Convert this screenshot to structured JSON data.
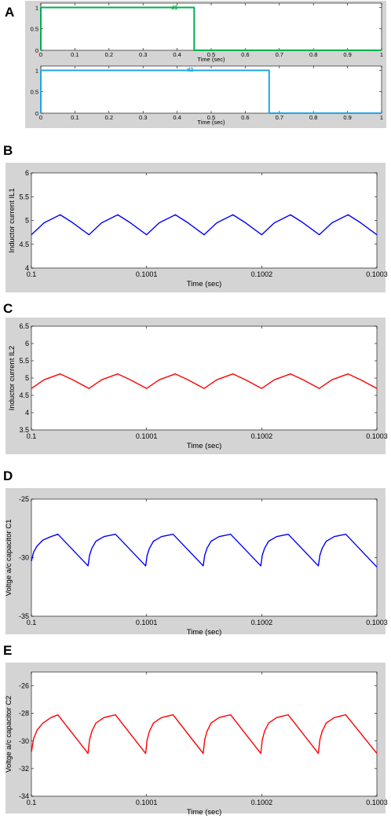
{
  "chart_data": [
    {
      "panel": "A",
      "type": "line",
      "subplots": [
        {
          "series": [
            {
              "name": "d1",
              "color": "#00b050",
              "x": [
                0,
                0,
                0.005,
                0.005,
                0.45,
                0.45,
                1.0
              ],
              "y": [
                0,
                1,
                1,
                1,
                1,
                0,
                0
              ]
            }
          ],
          "xlabel": "Time (sec)",
          "ylabel": "",
          "xlim": [
            0,
            1
          ],
          "ylim": [
            0,
            1.1
          ],
          "xticks": [
            "0",
            "0.1",
            "0.2",
            "0.3",
            "0.4",
            "0.5",
            "0.6",
            "0.7",
            "0.8",
            "0.9",
            "1"
          ],
          "yticks": [
            "0",
            "0.5",
            "1"
          ]
        },
        {
          "series": [
            {
              "name": "d2",
              "color": "#1ea7e1",
              "x": [
                0,
                0,
                0.67,
                0.67,
                1.0
              ],
              "y": [
                0,
                1,
                1,
                0,
                0
              ]
            }
          ],
          "xlabel": "Time (sec)",
          "ylabel": "",
          "xlim": [
            0,
            1
          ],
          "ylim": [
            0,
            1.1
          ],
          "xticks": [
            "0",
            "0.1",
            "0.2",
            "0.3",
            "0.4",
            "0.5",
            "0.6",
            "0.7",
            "0.8",
            "0.9",
            "1"
          ],
          "yticks": [
            "0",
            "0.5",
            "1"
          ]
        }
      ]
    },
    {
      "panel": "B",
      "type": "line",
      "series": [
        {
          "color": "#0000ff",
          "x": [
            0.1,
            0.100011,
            0.100025,
            0.100036,
            0.10005,
            0.100061,
            0.100075,
            0.100086,
            0.1001,
            0.100111,
            0.100125,
            0.100136,
            0.10015,
            0.100161,
            0.100175,
            0.100186,
            0.1002,
            0.100211,
            0.100225,
            0.100236,
            0.10025,
            0.100261,
            0.100275,
            0.100286,
            0.1003
          ],
          "y": [
            4.7,
            4.95,
            5.12,
            4.95,
            4.7,
            4.95,
            5.12,
            4.95,
            4.7,
            4.95,
            5.12,
            4.95,
            4.7,
            4.95,
            5.12,
            4.95,
            4.7,
            4.95,
            5.12,
            4.95,
            4.7,
            4.95,
            5.12,
            4.95,
            4.7
          ]
        }
      ],
      "xlabel": "Time (sec)",
      "ylabel": "Inductor current IL1",
      "xlim": [
        0.1,
        0.1003
      ],
      "ylim": [
        4,
        6
      ],
      "xticks": [
        "0.1",
        "0.1001",
        "0.1002",
        "0.1003"
      ],
      "yticks": [
        "4",
        "4.5",
        "5",
        "5.5",
        "6"
      ]
    },
    {
      "panel": "C",
      "type": "line",
      "series": [
        {
          "color": "#ff0000",
          "x": [
            0.1,
            0.100011,
            0.100025,
            0.100036,
            0.10005,
            0.100061,
            0.100075,
            0.100086,
            0.1001,
            0.100111,
            0.100125,
            0.100136,
            0.10015,
            0.100161,
            0.100175,
            0.100186,
            0.1002,
            0.100211,
            0.100225,
            0.100236,
            0.10025,
            0.100261,
            0.100275,
            0.100286,
            0.1003
          ],
          "y": [
            4.7,
            4.95,
            5.12,
            4.95,
            4.7,
            4.95,
            5.12,
            4.95,
            4.7,
            4.95,
            5.12,
            4.95,
            4.7,
            4.95,
            5.12,
            4.95,
            4.7,
            4.95,
            5.12,
            4.95,
            4.7,
            4.95,
            5.12,
            4.95,
            4.7
          ]
        }
      ],
      "xlabel": "Time (sec)",
      "ylabel": "Inductor current IL2",
      "xlim": [
        0.1,
        0.1003
      ],
      "ylim": [
        3.5,
        6.5
      ],
      "xticks": [
        "0.1",
        "0.1001",
        "0.1002",
        "0.1003"
      ],
      "yticks": [
        "3.5",
        "4",
        "4.5",
        "5",
        "5.5",
        "6",
        "6.5"
      ]
    },
    {
      "panel": "D",
      "type": "line",
      "series": [
        {
          "color": "#0000ff",
          "x": [
            0.1,
            0.100002,
            0.100005,
            0.10001,
            0.100017,
            0.100023,
            0.1000492,
            0.1000505,
            0.1000525,
            0.100056,
            0.100063,
            0.100073,
            0.1000992,
            0.1001005,
            0.1001025,
            0.100106,
            0.100113,
            0.100123,
            0.1001492,
            0.1001505,
            0.1001525,
            0.100156,
            0.100163,
            0.100173,
            0.1001992,
            0.1002005,
            0.1002025,
            0.100206,
            0.100213,
            0.100223,
            0.1002492,
            0.1002505,
            0.1002525,
            0.100256,
            0.100263,
            0.100273,
            0.1003
          ],
          "y": [
            -30.3,
            -29.5,
            -29.0,
            -28.5,
            -28.2,
            -28.0,
            -30.7,
            -29.8,
            -29.2,
            -28.6,
            -28.2,
            -28.0,
            -30.7,
            -29.8,
            -29.2,
            -28.6,
            -28.2,
            -28.0,
            -30.7,
            -29.8,
            -29.2,
            -28.6,
            -28.2,
            -28.0,
            -30.7,
            -29.8,
            -29.2,
            -28.6,
            -28.2,
            -28.0,
            -30.7,
            -29.8,
            -29.2,
            -28.6,
            -28.2,
            -28.0,
            -30.8
          ]
        }
      ],
      "xlabel": "Time (sec)",
      "ylabel": "Voltge a/c capacitor C1",
      "xlim": [
        0.1,
        0.1003
      ],
      "ylim": [
        -35,
        -25
      ],
      "xticks": [
        "0.1",
        "0.1001",
        "0.1002",
        "0.1003"
      ],
      "yticks": [
        "-35",
        "-30",
        "-25"
      ]
    },
    {
      "panel": "E",
      "type": "line",
      "series": [
        {
          "color": "#ff0000",
          "x": [
            0.1,
            0.100002,
            0.100005,
            0.10001,
            0.100017,
            0.100023,
            0.1000492,
            0.1000505,
            0.1000525,
            0.100056,
            0.100063,
            0.100073,
            0.1000992,
            0.1001005,
            0.1001025,
            0.100106,
            0.100113,
            0.100123,
            0.1001492,
            0.1001505,
            0.1001525,
            0.100156,
            0.100163,
            0.100173,
            0.1001992,
            0.1002005,
            0.1002025,
            0.100206,
            0.100213,
            0.100223,
            0.1002492,
            0.1002505,
            0.1002525,
            0.100256,
            0.100263,
            0.100273,
            0.1003
          ],
          "y": [
            -30.8,
            -29.8,
            -29.2,
            -28.7,
            -28.3,
            -28.1,
            -30.9,
            -29.9,
            -29.3,
            -28.7,
            -28.3,
            -28.1,
            -30.9,
            -29.9,
            -29.3,
            -28.7,
            -28.3,
            -28.1,
            -30.9,
            -29.9,
            -29.3,
            -28.7,
            -28.3,
            -28.1,
            -30.9,
            -29.9,
            -29.3,
            -28.7,
            -28.3,
            -28.1,
            -30.9,
            -29.9,
            -29.3,
            -28.7,
            -28.3,
            -28.1,
            -30.9
          ]
        }
      ],
      "xlabel": "Time (sec)",
      "ylabel": "Voltge a/c capacitor C2",
      "xlim": [
        0.1,
        0.1003
      ],
      "ylim": [
        -34,
        -25
      ],
      "xticks": [
        "0.1",
        "0.1001",
        "0.1002",
        "0.1003"
      ],
      "yticks": [
        "-34",
        "-32",
        "-30",
        "-28",
        "-26"
      ]
    }
  ],
  "labels": {
    "panel_a": "A",
    "panel_b": "B",
    "panel_c": "C",
    "panel_d": "D",
    "panel_e": "E",
    "d1": "d1",
    "d2": "d2"
  },
  "colors": {
    "frame_bg": "#d4d4d4",
    "axes_bg": "#ffffff"
  }
}
